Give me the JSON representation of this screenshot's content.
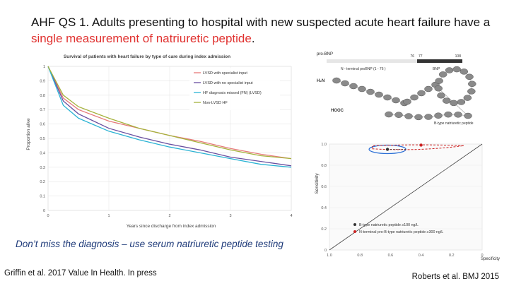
{
  "slide": {
    "title_part1": "AHF QS 1. Adults presenting to hospital with new suspected acute heart failure have a ",
    "title_highlight": "single measurement of natriuretic peptide",
    "title_end": ".",
    "tagline": "Don’t miss the diagnosis – use serum natriuretic peptide testing",
    "citation_left": "Griffin et al. 2017 Value In Health. In press",
    "citation_right": "Roberts et al. BMJ 2015"
  },
  "chart_data": [
    {
      "type": "line",
      "title": "Survival of patients with heart failure by type of care during index admission",
      "xlabel": "Years since discharge from index admission",
      "ylabel": "Proportion alive",
      "xlim": [
        0,
        4
      ],
      "ylim": [
        0,
        1
      ],
      "x_ticks": [
        "0",
        "1",
        "2",
        "3",
        "4"
      ],
      "y_ticks": [
        "0",
        "0.1",
        "0.2",
        "0.3",
        "0.4",
        "0.5",
        "0.6",
        "0.7",
        "0.8",
        "0.9",
        "1"
      ],
      "grid": true,
      "legend_position": "top-right",
      "x": [
        0,
        0.25,
        0.5,
        1,
        1.5,
        2,
        2.5,
        3,
        3.5,
        4
      ],
      "series": [
        {
          "name": "LVSD with specialist input",
          "color": "#e67a7a",
          "values": [
            1,
            0.78,
            0.7,
            0.62,
            0.57,
            0.52,
            0.48,
            0.43,
            0.39,
            0.36
          ]
        },
        {
          "name": "LVSD with no specialist input",
          "color": "#6a4fa0",
          "values": [
            1,
            0.76,
            0.67,
            0.57,
            0.51,
            0.46,
            0.42,
            0.37,
            0.34,
            0.31
          ]
        },
        {
          "name": "HF diagnosis missed (FN) (LVSD)",
          "color": "#2bb3d4",
          "values": [
            1,
            0.73,
            0.64,
            0.55,
            0.49,
            0.44,
            0.4,
            0.36,
            0.32,
            0.3
          ]
        },
        {
          "name": "Non-LVSD HF",
          "color": "#a5b23c",
          "values": [
            1,
            0.8,
            0.72,
            0.64,
            0.57,
            0.52,
            0.47,
            0.42,
            0.38,
            0.36
          ]
        }
      ]
    },
    {
      "type": "scatter",
      "xlabel": "Specificity",
      "ylabel": "Sensitivity",
      "x_ticks": [
        "1.0",
        "0.8",
        "0.6",
        "0.4",
        "0.2",
        "0"
      ],
      "y_ticks": [
        "0",
        "0.2",
        "0.4",
        "0.6",
        "0.8",
        "1.0"
      ],
      "xlim": [
        1,
        0
      ],
      "ylim": [
        0,
        1
      ],
      "series": [
        {
          "name": "B-type natriuretic peptide ≥100 ng/L",
          "color": "#333333",
          "points": [
            [
              0.62,
              0.95
            ]
          ]
        },
        {
          "name": "N-terminal pro-B-type natriuretic peptide ≥300 ng/L",
          "color": "#cc2222",
          "points": [
            [
              0.4,
              0.99
            ]
          ]
        }
      ]
    }
  ],
  "bnp_figure": {
    "label_pro": "pro-BNP",
    "num_76": "76",
    "num_77": "77",
    "num_108": "108",
    "label_nt": "N - terminal proBNP (1 - 76 )",
    "label_bnp": "BNP",
    "label_h2n": "H₂N",
    "label_cooh": "HOOC",
    "label_bpep": "B-type natriuretic peptide"
  }
}
